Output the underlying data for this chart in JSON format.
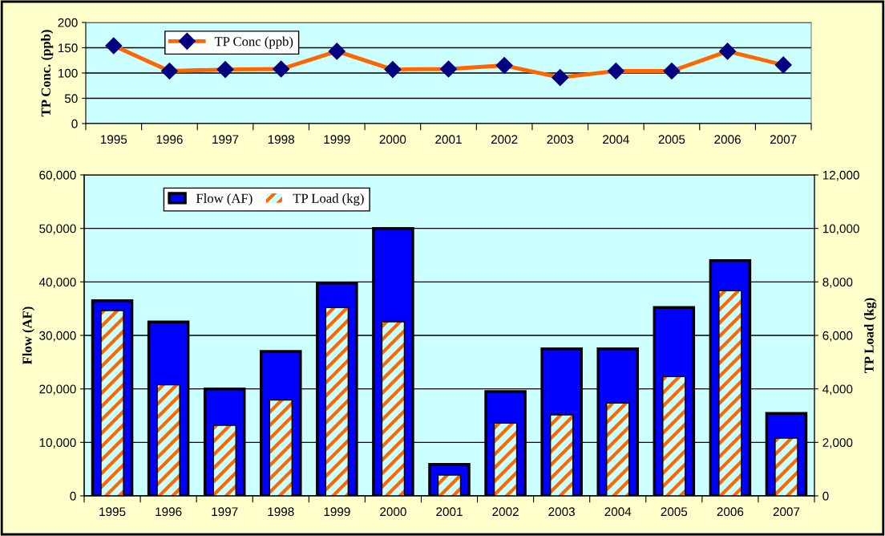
{
  "chart_data": [
    {
      "type": "line",
      "ylabel": "TP Conc. (ppb)",
      "categories": [
        "1995",
        "1996",
        "1997",
        "1998",
        "1999",
        "2000",
        "2001",
        "2002",
        "2003",
        "2004",
        "2005",
        "2006",
        "2007"
      ],
      "series": [
        {
          "name": "TP Conc (ppb)",
          "color": "#ff6600",
          "values": [
            154,
            104,
            107,
            108,
            143,
            107,
            108,
            115,
            91,
            104,
            104,
            143,
            116
          ]
        }
      ],
      "ylim": [
        0,
        200
      ],
      "yticks": [
        0,
        50,
        100,
        150,
        200
      ],
      "grid": "y",
      "legend": "top left",
      "marker": "diamond",
      "line_style": "solid"
    },
    {
      "type": "bar",
      "ylabel": "Flow (AF)",
      "y2label": "TP Load (kg)",
      "categories": [
        "1995",
        "1996",
        "1997",
        "1998",
        "1999",
        "2000",
        "2001",
        "2002",
        "2003",
        "2004",
        "2005",
        "2006",
        "2007"
      ],
      "series": [
        {
          "name": "Flow (AF)",
          "color": "#0000ff",
          "values": [
            36500,
            32500,
            20000,
            27000,
            39800,
            50000,
            5900,
            19500,
            27500,
            27500,
            35200,
            44000,
            15400
          ]
        },
        {
          "name": "TP Load (kg)",
          "color": "#ff6600",
          "axis": "y2",
          "values": [
            6930,
            4150,
            2640,
            3580,
            7040,
            6510,
            780,
            2720,
            3030,
            3470,
            4460,
            7670,
            2160
          ]
        }
      ],
      "ylim": [
        0,
        60000
      ],
      "yticks": [
        {
          "value": 0,
          "label": "0"
        },
        {
          "value": 10000,
          "label": "10,000"
        },
        {
          "value": 20000,
          "label": "20,000"
        },
        {
          "value": 30000,
          "label": "30,000"
        },
        {
          "value": 40000,
          "label": "40,000"
        },
        {
          "value": 50000,
          "label": "50,000"
        },
        {
          "value": 60000,
          "label": "60,000"
        }
      ],
      "y2lim": [
        0,
        12000
      ],
      "y2ticks": [
        {
          "value": 0,
          "label": "0"
        },
        {
          "value": 2000,
          "label": "2,000"
        },
        {
          "value": 4000,
          "label": "4,000"
        },
        {
          "value": 6000,
          "label": "6,000"
        },
        {
          "value": 8000,
          "label": "8,000"
        },
        {
          "value": 10000,
          "label": "10,000"
        },
        {
          "value": 12000,
          "label": "12,000"
        }
      ],
      "grid": "y",
      "legend": "top left"
    }
  ]
}
